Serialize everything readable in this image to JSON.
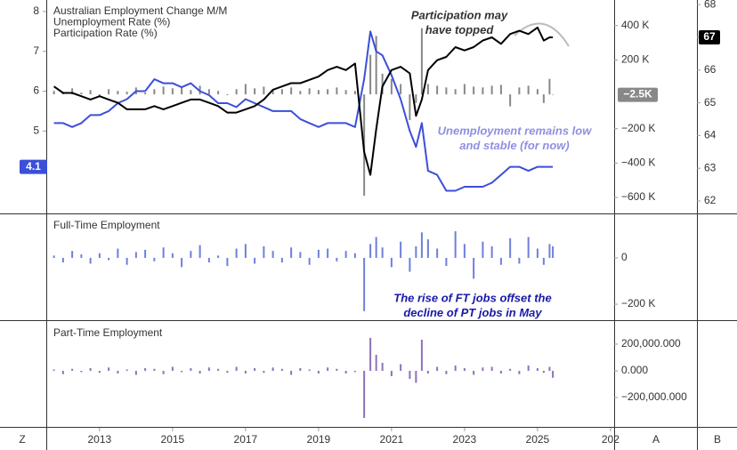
{
  "chart_data": [
    {
      "type": "line",
      "x": [
        2011.75,
        2012.0,
        2012.25,
        2012.5,
        2012.75,
        2013.0,
        2013.25,
        2013.5,
        2013.75,
        2014.0,
        2014.25,
        2014.5,
        2014.75,
        2015.0,
        2015.25,
        2015.5,
        2015.75,
        2016.0,
        2016.25,
        2016.5,
        2016.75,
        2017.0,
        2017.25,
        2017.5,
        2017.75,
        2018.0,
        2018.25,
        2018.5,
        2018.75,
        2019.0,
        2019.25,
        2019.5,
        2019.75,
        2020.0,
        2020.25,
        2020.42,
        2020.58,
        2020.75,
        2021.0,
        2021.25,
        2021.5,
        2021.67,
        2021.83,
        2022.0,
        2022.25,
        2022.5,
        2022.75,
        2023.0,
        2023.25,
        2023.5,
        2023.75,
        2024.0,
        2024.25,
        2024.5,
        2024.75,
        2025.0,
        2025.17,
        2025.33,
        2025.42
      ],
      "xlim": [
        2011.54,
        2027.1
      ],
      "series": [
        {
          "name": "Australian Employment Change M/M",
          "type": "bar",
          "axis": "y2",
          "color": "#888888",
          "last_label": "−2.5K",
          "values": [
            20000,
            15000,
            35000,
            10000,
            25000,
            -10000,
            30000,
            20000,
            15000,
            40000,
            10000,
            30000,
            45000,
            35000,
            40000,
            25000,
            50000,
            30000,
            20000,
            -5000,
            30000,
            60000,
            35000,
            45000,
            25000,
            30000,
            40000,
            20000,
            35000,
            25000,
            30000,
            40000,
            25000,
            20000,
            -590000,
            230000,
            340000,
            120000,
            90000,
            60000,
            -150000,
            -50000,
            385000,
            60000,
            50000,
            40000,
            30000,
            60000,
            45000,
            40000,
            50000,
            55000,
            -70000,
            40000,
            50000,
            30000,
            -50000,
            90000,
            -2500
          ]
        },
        {
          "name": "Unemployment Rate (%)",
          "type": "line",
          "axis": "y",
          "color": "#3b4fd8",
          "last_label": "4.1",
          "values": [
            5.2,
            5.2,
            5.1,
            5.2,
            5.4,
            5.4,
            5.5,
            5.7,
            5.8,
            6.0,
            6.0,
            6.3,
            6.2,
            6.2,
            6.1,
            6.2,
            6.0,
            5.9,
            5.7,
            5.7,
            5.6,
            5.8,
            5.7,
            5.6,
            5.5,
            5.5,
            5.5,
            5.3,
            5.2,
            5.1,
            5.2,
            5.2,
            5.2,
            5.1,
            6.3,
            7.5,
            7.0,
            6.9,
            6.4,
            5.8,
            5.0,
            4.6,
            5.2,
            4.0,
            3.9,
            3.5,
            3.5,
            3.6,
            3.6,
            3.6,
            3.7,
            3.9,
            4.1,
            4.1,
            4.0,
            4.1,
            4.1,
            4.1,
            4.1
          ]
        },
        {
          "name": "Participation Rate (%)",
          "type": "line",
          "axis": "y3",
          "color": "#000000",
          "last_label": "67",
          "values": [
            65.5,
            65.3,
            65.3,
            65.2,
            65.1,
            65.2,
            65.1,
            65.0,
            64.8,
            64.8,
            64.8,
            64.9,
            64.8,
            64.9,
            65.0,
            65.1,
            65.1,
            65.0,
            64.9,
            64.7,
            64.7,
            64.8,
            64.9,
            65.1,
            65.4,
            65.5,
            65.6,
            65.6,
            65.7,
            65.8,
            66.0,
            66.1,
            66.0,
            66.2,
            63.5,
            62.8,
            64.2,
            65.5,
            66.0,
            66.1,
            65.9,
            64.6,
            65.1,
            66.0,
            66.3,
            66.4,
            66.7,
            66.6,
            66.7,
            66.9,
            67.0,
            66.8,
            67.1,
            67.2,
            67.1,
            67.3,
            66.9,
            67.0,
            67.0
          ]
        }
      ],
      "ylim": [
        2.93,
        8.29
      ],
      "yticks": [
        5,
        6,
        7,
        8
      ],
      "y2lim": [
        -693000,
        549000
      ],
      "y2ticks": [
        {
          "value": 400000,
          "label": "400 K"
        },
        {
          "value": 200000,
          "label": "200 K"
        },
        {
          "value": -200000,
          "label": "−200 K"
        },
        {
          "value": -400000,
          "label": "−400 K"
        },
        {
          "value": -600000,
          "label": "−600 K"
        }
      ],
      "y3lim": [
        61.62,
        68.14
      ],
      "y3ticks": [
        62,
        63,
        64,
        65,
        66,
        67,
        68
      ],
      "annotations": [
        {
          "lines": [
            "Participation may",
            "have topped"
          ]
        },
        {
          "lines": [
            "Unemployment remains low",
            "and stable (for now)"
          ]
        }
      ]
    },
    {
      "type": "bar",
      "x": [
        2011.75,
        2012.0,
        2012.25,
        2012.5,
        2012.75,
        2013.0,
        2013.25,
        2013.5,
        2013.75,
        2014.0,
        2014.25,
        2014.5,
        2014.75,
        2015.0,
        2015.25,
        2015.5,
        2015.75,
        2016.0,
        2016.25,
        2016.5,
        2016.75,
        2017.0,
        2017.25,
        2017.5,
        2017.75,
        2018.0,
        2018.25,
        2018.5,
        2018.75,
        2019.0,
        2019.25,
        2019.5,
        2019.75,
        2020.0,
        2020.25,
        2020.42,
        2020.58,
        2020.75,
        2021.0,
        2021.25,
        2021.5,
        2021.67,
        2021.83,
        2022.0,
        2022.25,
        2022.5,
        2022.75,
        2023.0,
        2023.25,
        2023.5,
        2023.75,
        2024.0,
        2024.25,
        2024.5,
        2024.75,
        2025.0,
        2025.17,
        2025.33,
        2025.42
      ],
      "xlim": [
        2011.54,
        2027.1
      ],
      "series": [
        {
          "name": "Full-Time Employment",
          "type": "bar",
          "axis": "y",
          "color": "#6f7fdb",
          "values": [
            10000,
            -20000,
            30000,
            15000,
            -25000,
            20000,
            -10000,
            40000,
            -30000,
            25000,
            35000,
            -15000,
            45000,
            20000,
            -40000,
            30000,
            55000,
            -20000,
            10000,
            -35000,
            40000,
            60000,
            -25000,
            50000,
            30000,
            -20000,
            45000,
            25000,
            -30000,
            35000,
            40000,
            -15000,
            30000,
            20000,
            -230000,
            60000,
            90000,
            45000,
            -40000,
            70000,
            -60000,
            50000,
            110000,
            80000,
            40000,
            -35000,
            115000,
            60000,
            -90000,
            70000,
            50000,
            -30000,
            85000,
            -25000,
            90000,
            40000,
            -30000,
            60000,
            50000
          ]
        }
      ],
      "ylim": [
        -269000,
        188000
      ],
      "yticks": [
        0,
        {
          "value": -200000,
          "label": "−200 K"
        }
      ],
      "annotations": [
        {
          "lines": [
            "The rise of FT jobs offset the",
            "decline of PT jobs in May"
          ]
        }
      ]
    },
    {
      "type": "bar",
      "x": [
        2011.75,
        2012.0,
        2012.25,
        2012.5,
        2012.75,
        2013.0,
        2013.25,
        2013.5,
        2013.75,
        2014.0,
        2014.25,
        2014.5,
        2014.75,
        2015.0,
        2015.25,
        2015.5,
        2015.75,
        2016.0,
        2016.25,
        2016.5,
        2016.75,
        2017.0,
        2017.25,
        2017.5,
        2017.75,
        2018.0,
        2018.25,
        2018.5,
        2018.75,
        2019.0,
        2019.25,
        2019.5,
        2019.75,
        2020.0,
        2020.25,
        2020.42,
        2020.58,
        2020.75,
        2021.0,
        2021.25,
        2021.5,
        2021.67,
        2021.83,
        2022.0,
        2022.25,
        2022.5,
        2022.75,
        2023.0,
        2023.25,
        2023.5,
        2023.75,
        2024.0,
        2024.25,
        2024.5,
        2024.75,
        2025.0,
        2025.17,
        2025.33,
        2025.42
      ],
      "xlim": [
        2011.54,
        2027.1
      ],
      "xticks": [
        2013,
        2015,
        2017,
        2019,
        2021,
        2023,
        2025,
        {
          "value": 2027,
          "label": "202"
        }
      ],
      "series": [
        {
          "name": "Part-Time Employment",
          "type": "bar",
          "axis": "y",
          "color": "#8d72b9",
          "values": [
            10000,
            -25000,
            15000,
            -10000,
            20000,
            -15000,
            25000,
            -20000,
            10000,
            -30000,
            20000,
            15000,
            -25000,
            30000,
            -10000,
            20000,
            -20000,
            25000,
            15000,
            -15000,
            30000,
            -20000,
            20000,
            -15000,
            25000,
            15000,
            -30000,
            20000,
            10000,
            -20000,
            25000,
            15000,
            -20000,
            -10000,
            -353000,
            247000,
            120000,
            60000,
            -40000,
            50000,
            -60000,
            -90000,
            233000,
            -20000,
            30000,
            -25000,
            40000,
            20000,
            -30000,
            25000,
            30000,
            -20000,
            15000,
            -25000,
            40000,
            20000,
            -15000,
            30000,
            -52000
          ]
        }
      ],
      "ylim": [
        -420000,
        373000
      ],
      "yticks": [
        {
          "value": 200000,
          "label": "200,000.000"
        },
        {
          "value": 0,
          "label": "0.000"
        },
        {
          "value": -200000,
          "label": "−200,000.000"
        }
      ]
    }
  ],
  "ui": {
    "corner_button": "Z",
    "axis_buttons": [
      "A",
      "B"
    ]
  }
}
